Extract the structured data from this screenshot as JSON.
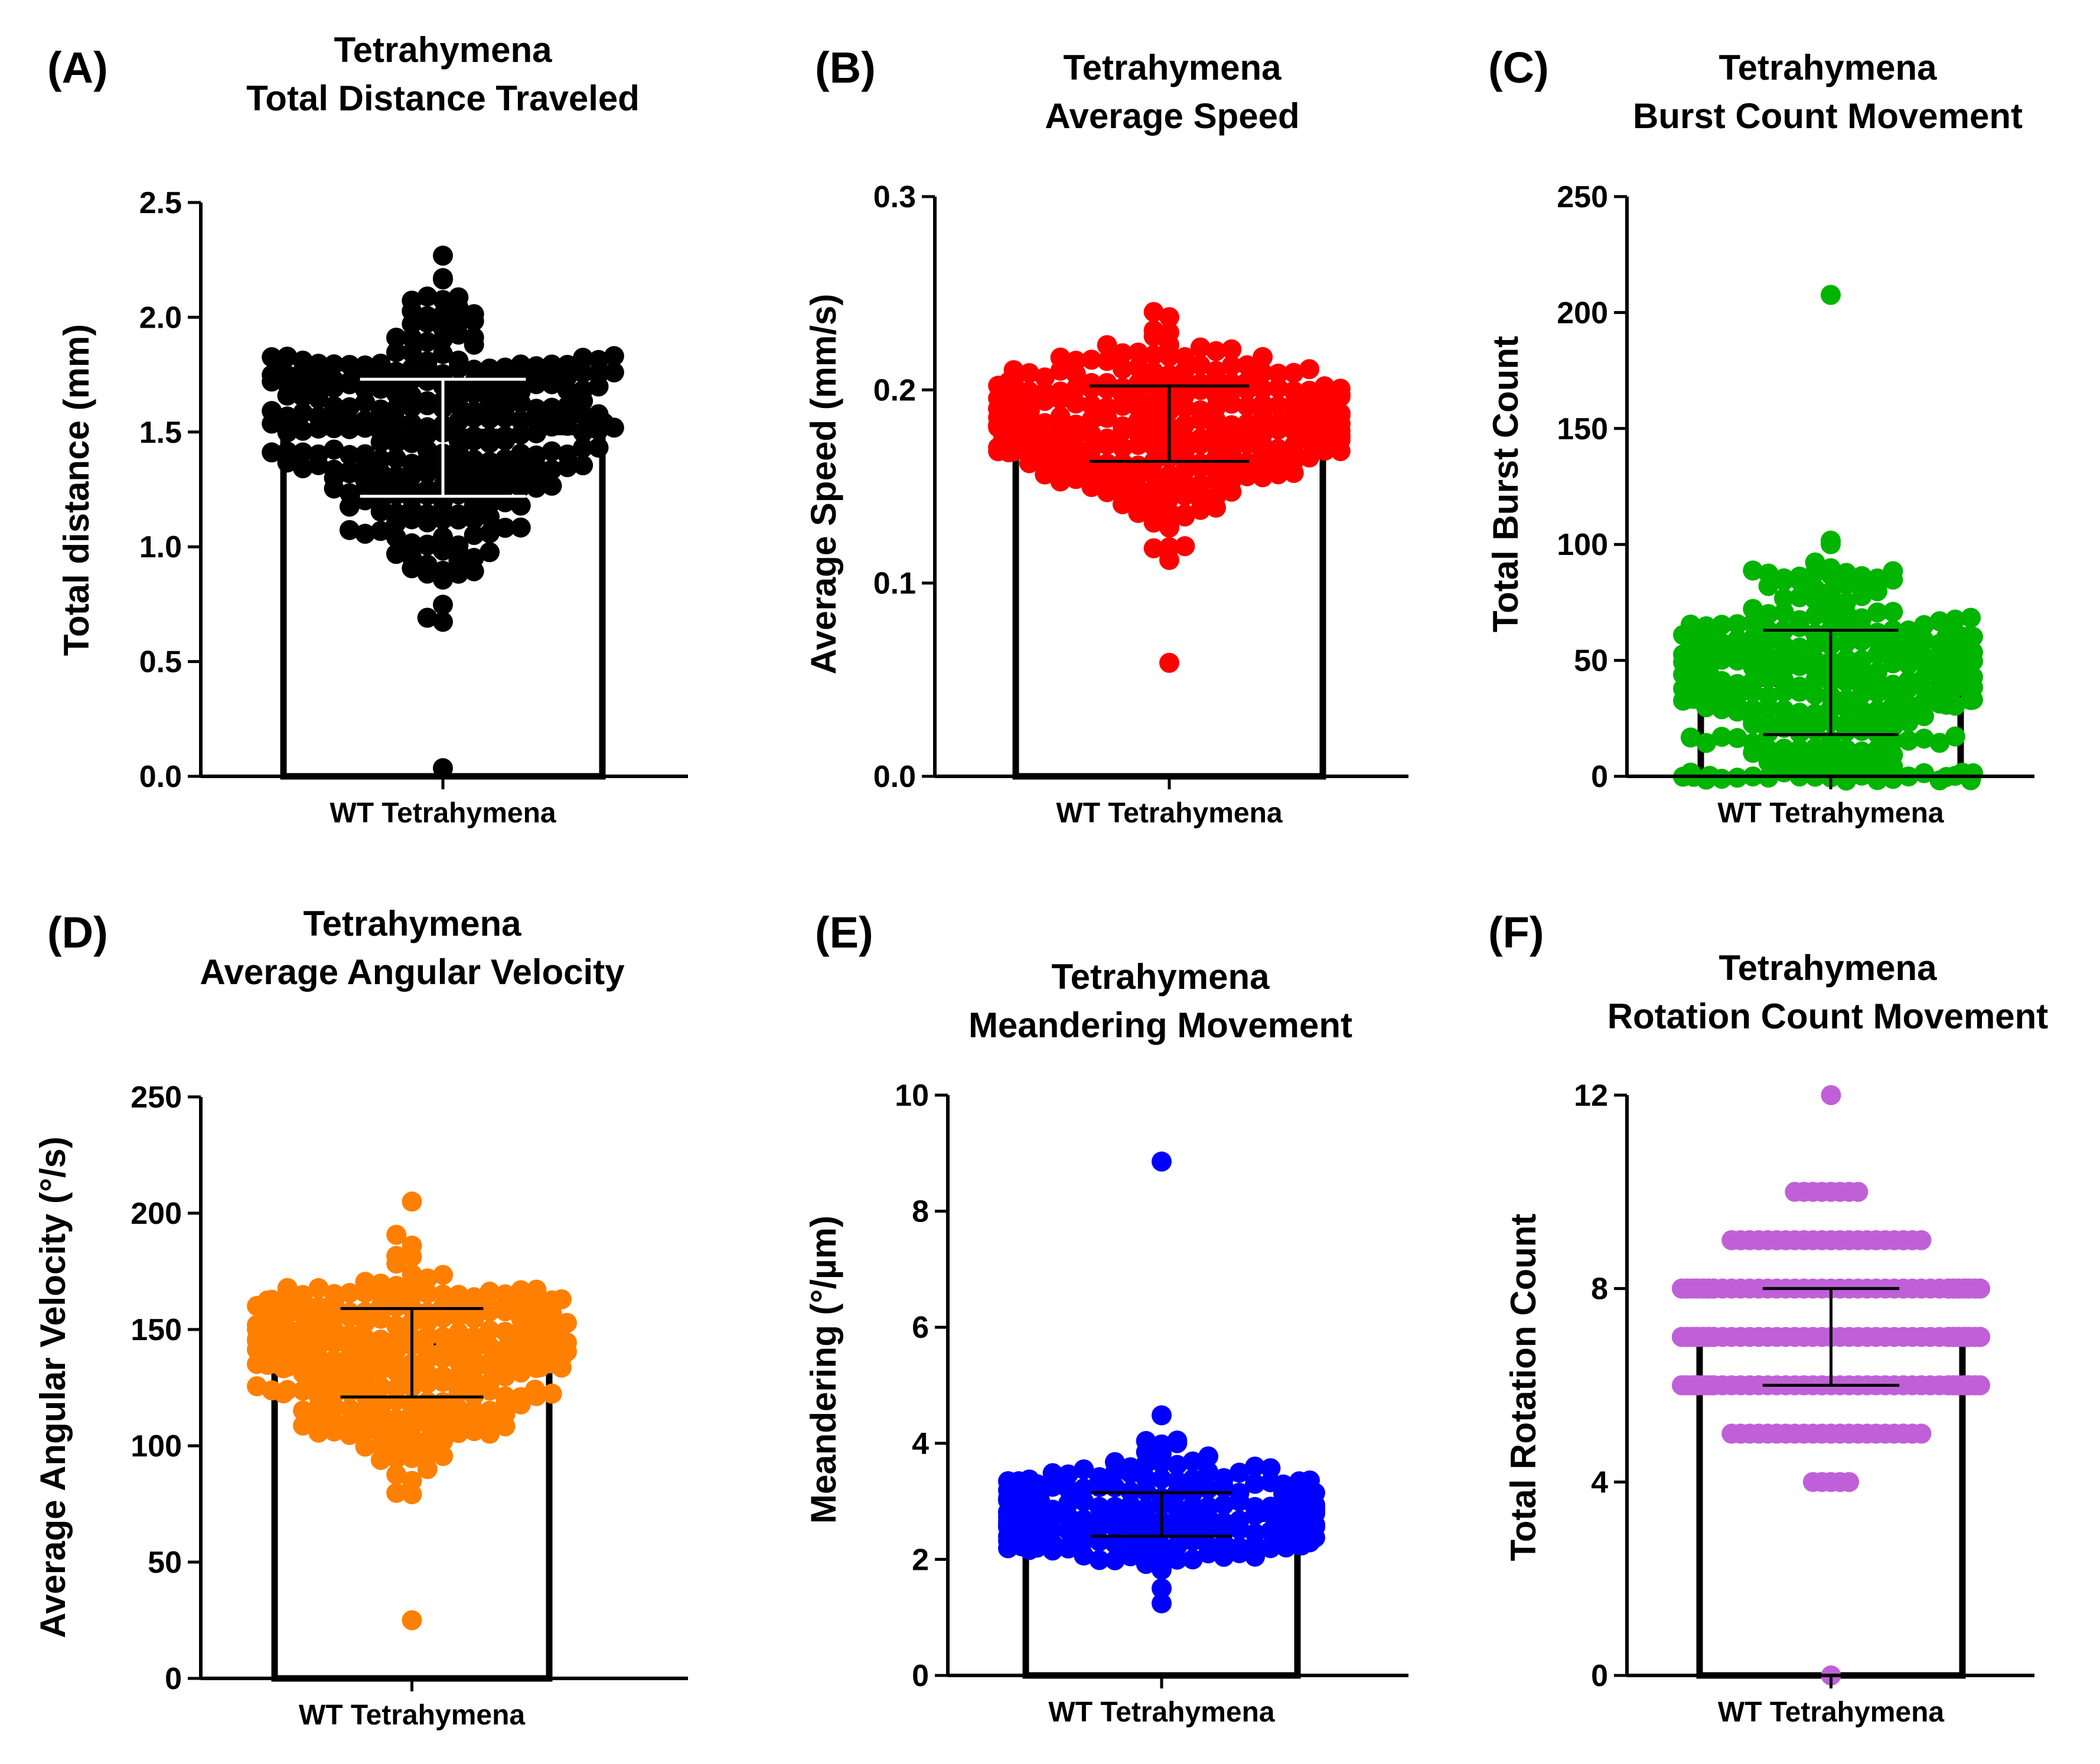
{
  "chart_data": [
    {
      "panel": "(A)",
      "type": "bar",
      "title": [
        "Tetrahymena",
        "Total Distance Traveled"
      ],
      "ylabel": "Total distance (mm)",
      "xlabel": "WT Tetrahymena",
      "categories": [
        "WT Tetrahymena"
      ],
      "ylim": [
        0,
        2.5
      ],
      "yticks": [
        "0.0",
        "0.5",
        "1.0",
        "1.5",
        "2.0",
        "2.5"
      ],
      "mean": 1.5,
      "error_low": 1.22,
      "error_high": 1.73,
      "point_color": "#000000",
      "point_max": 2.27,
      "point_min": 0.03
    },
    {
      "panel": "(B)",
      "type": "bar",
      "title": [
        "Tetrahymena",
        "Average Speed"
      ],
      "ylabel": "Average Speed (mm/s)",
      "xlabel": "WT Tetrahymena",
      "categories": [
        "WT Tetrahymena"
      ],
      "ylim": [
        0,
        0.3
      ],
      "yticks": [
        "0.0",
        "0.1",
        "0.2",
        "0.3"
      ],
      "mean": 0.183,
      "error_low": 0.163,
      "error_high": 0.202,
      "point_color": "#ff0000",
      "point_max": 0.24,
      "point_min": 0.061
    },
    {
      "panel": "(C)",
      "type": "bar",
      "title": [
        "Tetrahymena",
        "Burst Count Movement"
      ],
      "ylabel": "Total Burst Count",
      "xlabel": "WT Tetrahymena",
      "categories": [
        "WT Tetrahymena"
      ],
      "ylim": [
        0,
        250
      ],
      "yticks": [
        "0",
        "50",
        "100",
        "150",
        "200",
        "250"
      ],
      "mean": 40,
      "error_low": 18,
      "error_high": 63,
      "point_color": "#00b400",
      "point_max": 207,
      "point_min": 0
    },
    {
      "panel": "(D)",
      "type": "bar",
      "title": [
        "Tetrahymena",
        "Average Angular Velocity"
      ],
      "ylabel": "Average Angular Velocity (°/s)",
      "xlabel": "WT Tetrahymena",
      "categories": [
        "WT Tetrahymena"
      ],
      "ylim": [
        0,
        250
      ],
      "yticks": [
        "0",
        "50",
        "100",
        "150",
        "200",
        "250"
      ],
      "mean": 143,
      "error_low": 121,
      "error_high": 159,
      "point_color": "#ff8000",
      "point_max": 204,
      "point_min": 24
    },
    {
      "panel": "(E)",
      "type": "bar",
      "title": [
        "Tetrahymena",
        "Meandering Movement"
      ],
      "ylabel": "Meandering (°/µm)",
      "xlabel": "WT Tetrahymena",
      "categories": [
        "WT Tetrahymena"
      ],
      "ylim": [
        0,
        10
      ],
      "yticks": [
        "0",
        "2",
        "4",
        "6",
        "8",
        "10"
      ],
      "mean": 2.7,
      "error_low": 2.4,
      "error_high": 3.15,
      "point_color": "#0000ff",
      "point_max": 8.8,
      "point_min": 1.3
    },
    {
      "panel": "(F)",
      "type": "bar",
      "title": [
        "Tetrahymena",
        "Rotation Count Movement"
      ],
      "ylabel": "Total Rotation Count",
      "xlabel": "WT Tetrahymena",
      "categories": [
        "WT Tetrahymena"
      ],
      "ylim": [
        0,
        12
      ],
      "yticks": [
        "0",
        "4",
        "8",
        "12"
      ],
      "mean": 7,
      "error_low": 6,
      "error_high": 8,
      "point_color": "#c060d8",
      "point_max": 12,
      "point_min": 0
    }
  ]
}
